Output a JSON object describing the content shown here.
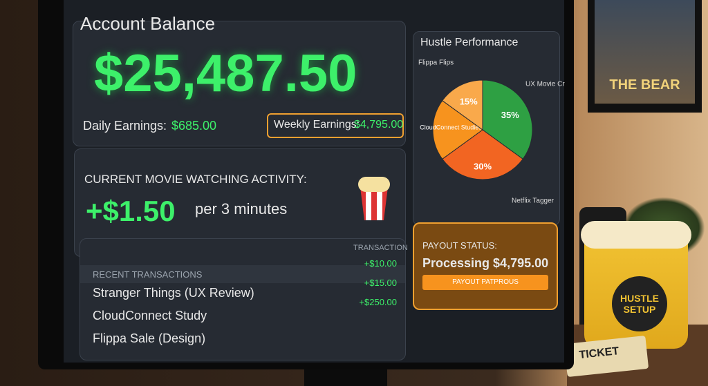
{
  "account_balance": {
    "title": "Account Balance",
    "amount": "$25,487.50",
    "daily_label": "Daily Earnings:",
    "daily_value": "$685.00",
    "weekly_label": "Weekly Earnings:",
    "weekly_value": "$4,795.00"
  },
  "activity": {
    "title": "CURRENT MOVIE WATCHING ACTIVITY:",
    "rate": "+$1.50",
    "unit": "per 3 minutes"
  },
  "transactions": {
    "column": "TRANSACTION",
    "title": "RECENT TRANSACTIONS",
    "rows": [
      {
        "name": "Stranger Things (UX Review)",
        "amount": "+$10.00"
      },
      {
        "name": "CloudConnect Study",
        "amount": "+$15.00"
      },
      {
        "name": "Flippa Sale (Design)",
        "amount": "+$250.00"
      }
    ]
  },
  "chart_data": {
    "type": "pie",
    "title": "Hustle Performance",
    "categories": [
      "UX Movie Critic",
      "Netflix Tagger",
      "CloudConnect Studies",
      "Flippa Flips"
    ],
    "values": [
      35,
      30,
      20,
      15
    ],
    "value_labels": [
      "35%",
      "30%",
      null,
      "15%"
    ],
    "colors": [
      "#2ea043",
      "#f26522",
      "#f7931e",
      "#f9a94b"
    ]
  },
  "payout": {
    "title": "PAYOUT STATUS:",
    "status": "Processing $4,795.00",
    "button": "PAYOUT PATPROUS"
  },
  "scene": {
    "poster": "THE BEAR",
    "bucket": "HUSTLE SETUP",
    "ticket": "TICKET"
  }
}
